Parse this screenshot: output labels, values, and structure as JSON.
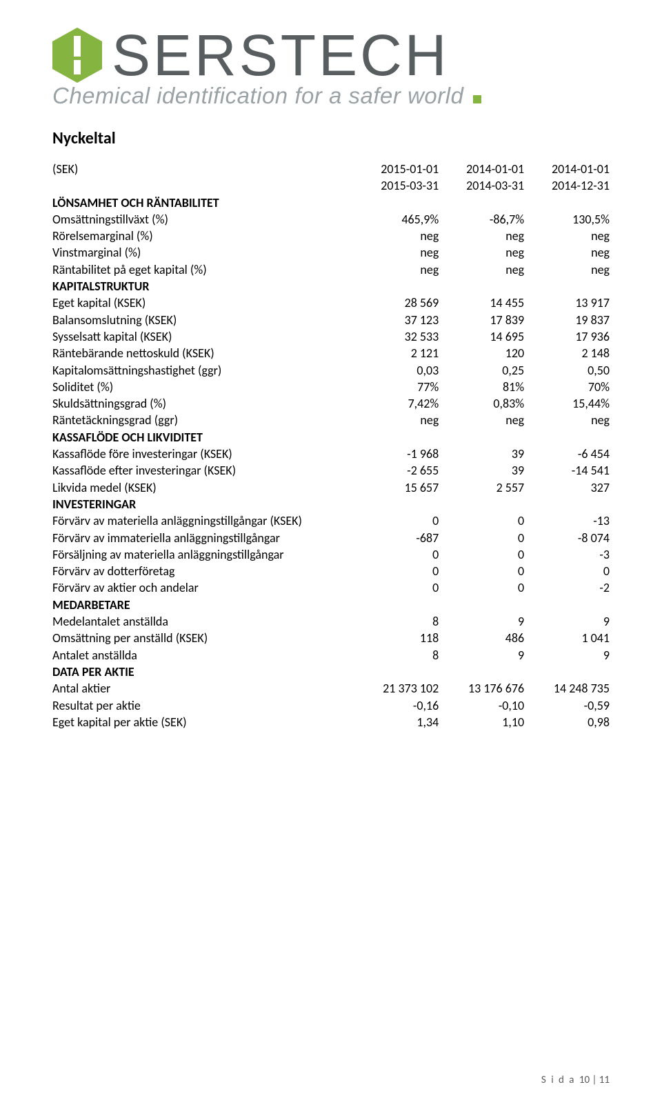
{
  "brand": {
    "name": "SERSTECH",
    "tagline": "Chemical identification for a safer world",
    "logo_color": "#86b440",
    "logo_grey": "#585d60",
    "tagline_color": "#9aa2a6"
  },
  "title": "Nyckeltal",
  "columns": {
    "unit_label": "(SEK)",
    "c1_top": "2015-01-01",
    "c1_bot": "2015-03-31",
    "c2_top": "2014-01-01",
    "c2_bot": "2014-03-31",
    "c3_top": "2014-01-01",
    "c3_bot": "2014-12-31"
  },
  "sections": [
    {
      "heading": "LÖNSAMHET OCH RÄNTABILITET",
      "rows": [
        {
          "label": "Omsättningstillväxt (%)",
          "c1": "465,9%",
          "c2": "-86,7%",
          "c3": "130,5%"
        },
        {
          "label": "Rörelsemarginal (%)",
          "c1": "neg",
          "c2": "neg",
          "c3": "neg"
        },
        {
          "label": "Vinstmarginal (%)",
          "c1": "neg",
          "c2": "neg",
          "c3": "neg"
        },
        {
          "label": "Räntabilitet på eget kapital (%)",
          "c1": "neg",
          "c2": "neg",
          "c3": "neg"
        }
      ]
    },
    {
      "heading": "KAPITALSTRUKTUR",
      "rows": [
        {
          "label": "Eget kapital (KSEK)",
          "c1": "28 569",
          "c2": "14 455",
          "c3": "13 917"
        },
        {
          "label": "Balansomslutning (KSEK)",
          "c1": "37 123",
          "c2": "17 839",
          "c3": "19 837"
        },
        {
          "label": "Sysselsatt kapital (KSEK)",
          "c1": "32 533",
          "c2": "14 695",
          "c3": "17 936"
        },
        {
          "label": "Räntebärande nettoskuld (KSEK)",
          "c1": "2 121",
          "c2": "120",
          "c3": "2 148"
        },
        {
          "label": "Kapitalomsättningshastighet (ggr)",
          "c1": "0,03",
          "c2": "0,25",
          "c3": "0,50"
        },
        {
          "label": "Soliditet (%)",
          "c1": "77%",
          "c2": "81%",
          "c3": "70%"
        },
        {
          "label": "Skuldsättningsgrad (%)",
          "c1": "7,42%",
          "c2": "0,83%",
          "c3": "15,44%"
        },
        {
          "label": "Räntetäckningsgrad (ggr)",
          "c1": "neg",
          "c2": "neg",
          "c3": "neg"
        }
      ]
    },
    {
      "heading": "KASSAFLÖDE OCH LIKVIDITET",
      "rows": [
        {
          "label": "Kassaflöde före investeringar (KSEK)",
          "c1": "-1 968",
          "c2": "39",
          "c3": "-6 454"
        },
        {
          "label": "Kassaflöde efter investeringar (KSEK)",
          "c1": "-2 655",
          "c2": "39",
          "c3": "-14 541"
        },
        {
          "label": "Likvida medel (KSEK)",
          "c1": "15 657",
          "c2": "2 557",
          "c3": "327"
        }
      ]
    },
    {
      "heading": "INVESTERINGAR",
      "rows": [
        {
          "label": "Förvärv av materiella anläggningstillgångar (KSEK)",
          "c1": "0",
          "c2": "0",
          "c3": "-13"
        },
        {
          "label": "Förvärv av immateriella anläggningstillgångar",
          "c1": "-687",
          "c2": "0",
          "c3": "-8 074"
        },
        {
          "label": "Försäljning av materiella anläggningstillgångar",
          "c1": "0",
          "c2": "0",
          "c3": "-3"
        },
        {
          "label": "Förvärv av dotterföretag",
          "c1": "0",
          "c2": "0",
          "c3": "0"
        },
        {
          "label": "Förvärv av aktier och andelar",
          "c1": "0",
          "c2": "0",
          "c3": "-2"
        }
      ]
    },
    {
      "heading": "MEDARBETARE",
      "rows": [
        {
          "label": "Medelantalet anställda",
          "c1": "8",
          "c2": "9",
          "c3": "9"
        },
        {
          "label": "Omsättning per anställd (KSEK)",
          "c1": "118",
          "c2": "486",
          "c3": "1 041"
        },
        {
          "label": "Antalet anställda",
          "c1": "8",
          "c2": "9",
          "c3": "9"
        }
      ]
    },
    {
      "heading": "DATA PER AKTIE",
      "rows": [
        {
          "label": "Antal aktier",
          "c1": "21 373 102",
          "c2": "13 176 676",
          "c3": "14 248 735"
        },
        {
          "label": "Resultat per aktie",
          "c1": "-0,16",
          "c2": "-0,10",
          "c3": "-0,59"
        },
        {
          "label": "Eget kapital per aktie (SEK)",
          "c1": "1,34",
          "c2": "1,10",
          "c3": "0,98"
        }
      ]
    }
  ],
  "footer": {
    "prefix": "S i d a ",
    "page": "10 | 11"
  }
}
